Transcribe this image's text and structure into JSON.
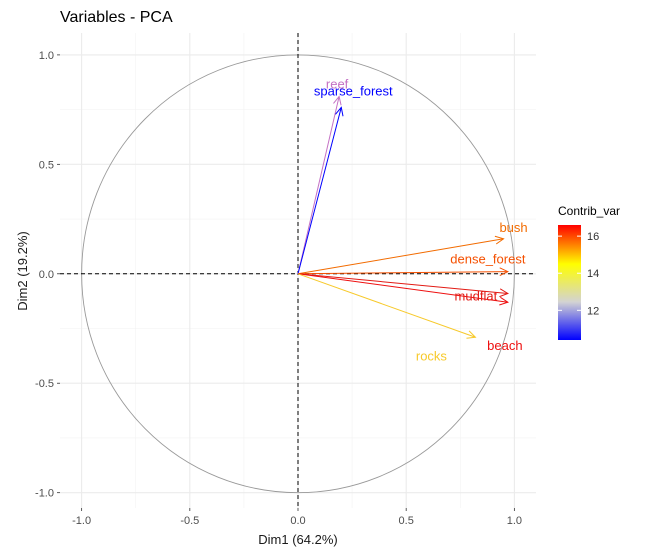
{
  "chart_data": {
    "type": "scatter",
    "title": "Variables - PCA",
    "xlabel": "Dim1 (64.2%)",
    "ylabel": "Dim2 (19.2%)",
    "xlim": [
      -1.1,
      1.1
    ],
    "ylim": [
      -1.07,
      1.1
    ],
    "x_ticks": [
      -1.0,
      -0.5,
      0.0,
      0.5,
      1.0
    ],
    "y_ticks": [
      -1.0,
      -0.5,
      0.0,
      0.5,
      1.0
    ],
    "x_tick_labels": [
      "-1.0",
      "-0.5",
      "0.0",
      "0.5",
      "1.0"
    ],
    "y_tick_labels": [
      "-1.0",
      "-0.5",
      "0.0",
      "0.5",
      "1.0"
    ],
    "grid": true,
    "unit_circle": true,
    "variables": [
      {
        "name": "reef",
        "x": 0.19,
        "y": 0.81,
        "contrib": 12.0,
        "color": "#c471c4"
      },
      {
        "name": "sparse_forest",
        "x": 0.2,
        "y": 0.76,
        "contrib": 10.6,
        "color": "#0000ff"
      },
      {
        "name": "bush",
        "x": 0.95,
        "y": 0.16,
        "contrib": 15.4,
        "color": "#f26b00"
      },
      {
        "name": "dense_forest",
        "x": 0.97,
        "y": 0.01,
        "contrib": 15.9,
        "color": "#f55000"
      },
      {
        "name": "mudflat",
        "x": 0.97,
        "y": -0.09,
        "contrib": 16.4,
        "color": "#e21a14"
      },
      {
        "name": "beach",
        "x": 0.97,
        "y": -0.13,
        "contrib": 16.5,
        "color": "#ee1010"
      },
      {
        "name": "rocks",
        "x": 0.82,
        "y": -0.29,
        "contrib": 13.2,
        "color": "#f7c92a"
      }
    ],
    "legend": {
      "title": "Contrib_var",
      "placement": "right",
      "range": [
        10.4,
        16.6
      ],
      "ticks": [
        12,
        14,
        16
      ],
      "tick_labels": [
        "12",
        "14",
        "16"
      ],
      "colors": [
        "#0000ff",
        "#d3d3d3",
        "#ffff00",
        "#ff0000"
      ]
    }
  }
}
